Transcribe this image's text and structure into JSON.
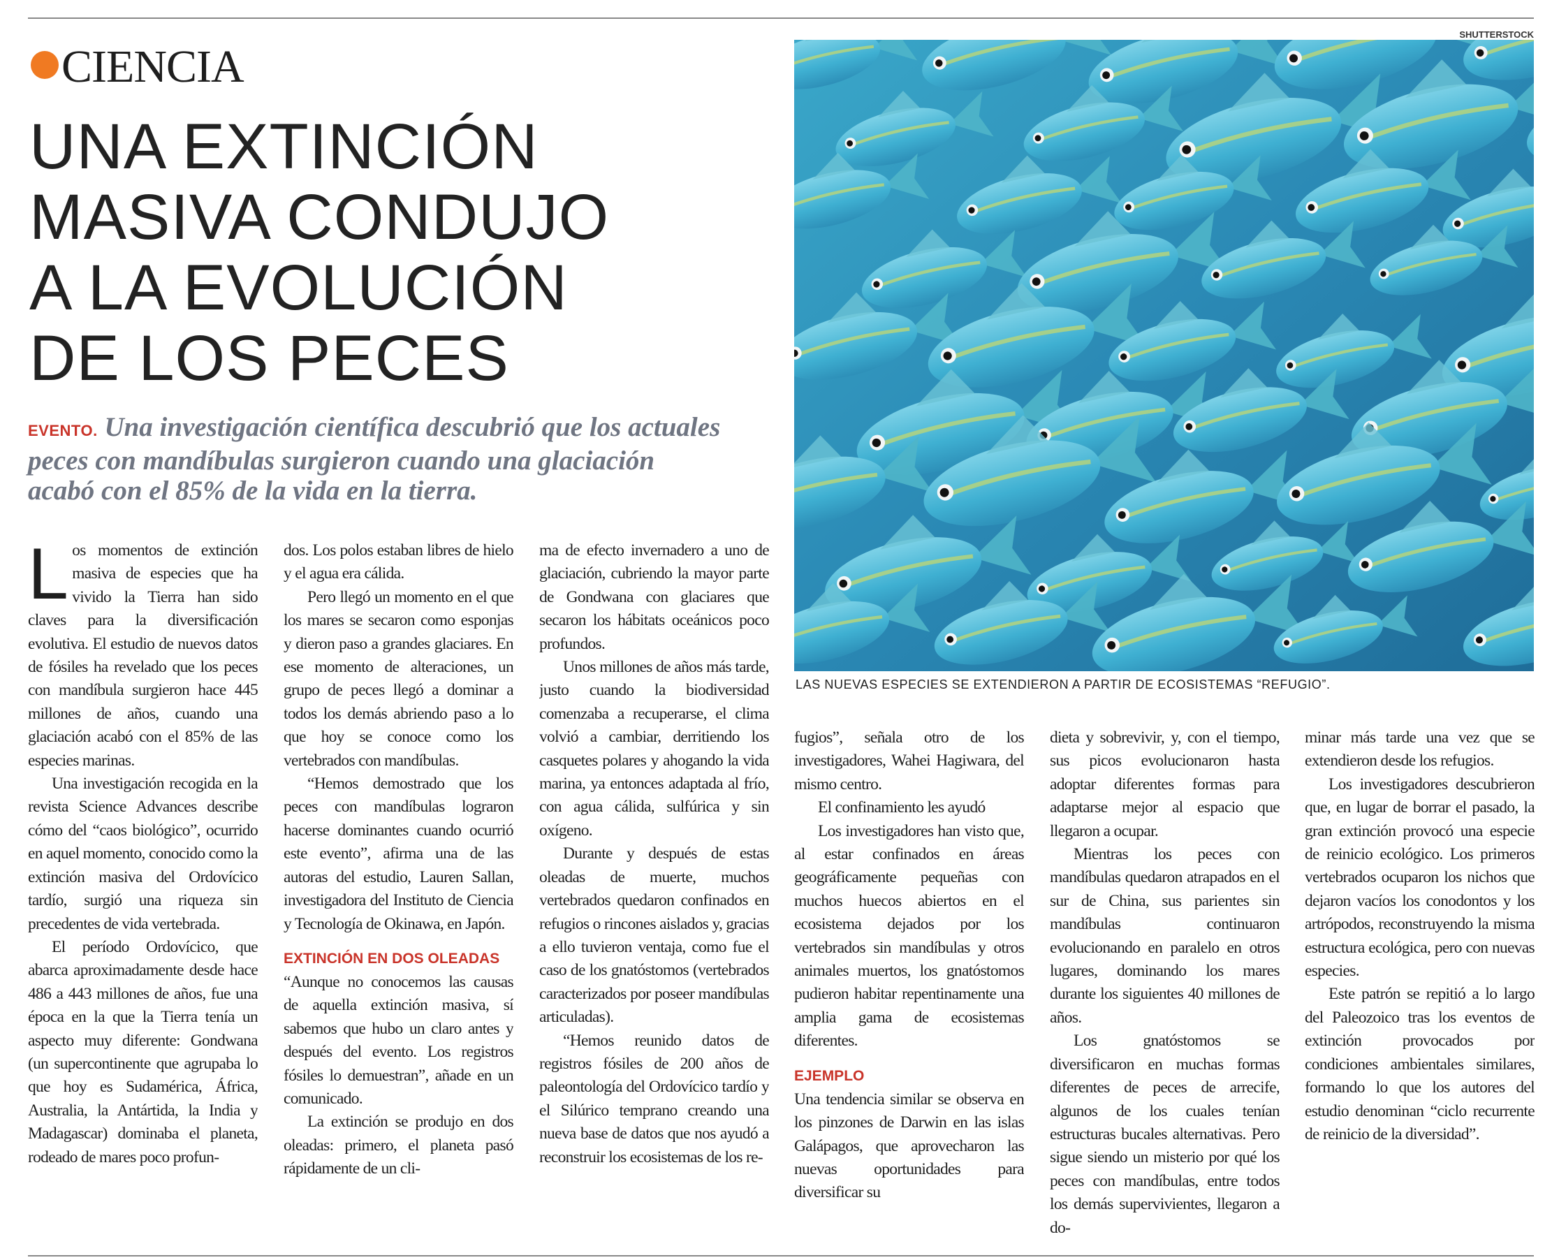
{
  "section": "CIENCIA",
  "headline": [
    "UNA EXTINCIÓN",
    "MASIVA CONDUJO",
    "A LA EVOLUCIÓN",
    "DE LOS PECES"
  ],
  "lead": {
    "label": "EVENTO.",
    "text": "Una investigación científica descubrió que los actuales peces con mandíbulas surgieron cuando una glaciación acabó con el 85% de la vida en la tierra."
  },
  "photo": {
    "credit": "SHUTTERSTOCK",
    "caption": "LAS NUEVAS ESPECIES SE EXTENDIERON A PARTIR DE ECOSISTEMAS “REFUGIO”."
  },
  "columns": [
    {
      "blocks": [
        {
          "p": "Los momentos de extinción masiva de especies que ha vivido la Tierra han sido claves para la diversificación evolutiva. El estudio de nuevos datos de fósiles ha revelado que los peces con mandíbula surgieron hace 445 millones de años, cuando una glaciación acabó con el 85% de las especies marinas."
        },
        {
          "p": "Una investigación recogida en la revista Science Advances describe cómo del “caos biológico”, ocurrido en aquel momento, conocido como la extinción masiva del Ordovícico tardío, surgió una riqueza sin precedentes de vida vertebrada."
        },
        {
          "p": "El período Ordovícico, que abarca aproximadamente desde hace 486 a 443 millones de años, fue una época en la que la Tierra tenía un aspecto muy diferente: Gondwana (un supercontinente que agrupaba lo que hoy es Sudamérica, África, Australia, la Antártida, la India y Madagascar) dominaba el planeta, rodeado de mares poco profun-"
        }
      ]
    },
    {
      "blocks": [
        {
          "p": "dos. Los polos estaban libres de hielo y el agua era cálida."
        },
        {
          "p": "Pero llegó un momento en el que los mares se secaron como esponjas y dieron paso a grandes glaciares. En ese momento de alteraciones, un grupo de peces llegó a dominar a todos los demás abriendo paso a lo que hoy se conoce como los vertebrados con mandíbulas."
        },
        {
          "p": "“Hemos demostrado que los peces con mandíbulas lograron hacerse dominantes cuando ocurrió este evento”, afirma una de las autoras del estudio, Lauren Sallan, investigadora del Instituto de Ciencia y Tecnología de Okinawa, en Japón."
        },
        {
          "subhead": "EXTINCIÓN EN DOS OLEADAS"
        },
        {
          "p": "“Aunque no conocemos las causas de aquella extinción masiva, sí sabemos que hubo un claro antes y después del evento. Los registros fósiles lo demuestran”, añade en un comunicado."
        },
        {
          "p": "La extinción se produjo en dos oleadas: primero, el planeta pasó rápidamente de un cli-"
        }
      ]
    },
    {
      "blocks": [
        {
          "p": "ma de efecto invernadero a uno de glaciación, cubriendo la mayor parte de Gondwana con glaciares que secaron los hábitats oceánicos poco profundos."
        },
        {
          "p": "Unos millones de años más tarde, justo cuando la biodiversidad comenzaba a recuperarse, el clima volvió a cambiar, derritiendo los casquetes polares y ahogando la vida marina, ya entonces adaptada al frío, con agua cálida, sulfúrica y sin oxígeno."
        },
        {
          "p": "Durante y después de estas oleadas de muerte, muchos vertebrados quedaron confinados en refugios o rincones aislados y, gracias a ello tuvieron ventaja, como fue el caso de los gnatóstomos (vertebrados caracterizados por poseer mandíbulas articuladas)."
        },
        {
          "p": "“Hemos reunido datos de registros fósiles de 200 años de paleontología del Ordovícico tardío y el Silúrico temprano creando una nueva base de datos que nos ayudó a reconstruir los ecosistemas de los re-"
        }
      ]
    },
    {
      "blocks": [
        {
          "p": "fugios”, señala otro de los investigadores, Wahei Hagiwara, del mismo centro."
        },
        {
          "p": "El confinamiento les ayudó"
        },
        {
          "p": "Los investigadores han visto que, al estar confinados en áreas geográficamente pequeñas con muchos huecos abiertos en el ecosistema dejados por los vertebrados sin mandíbulas y otros animales muertos, los gnatóstomos pudieron habitar repentinamente una amplia gama de ecosistemas diferentes."
        },
        {
          "subhead": "EJEMPLO"
        },
        {
          "p": "Una tendencia similar se observa en los pinzones de Darwin en las islas Galápagos, que aprovecharon las nuevas oportunidades para diversificar su"
        }
      ]
    },
    {
      "blocks": [
        {
          "p": "dieta y sobrevivir, y, con el tiempo, sus picos evolucionaron hasta adoptar diferentes formas para adaptarse mejor al espacio que llegaron a ocupar."
        },
        {
          "p": "Mientras los peces con mandíbulas quedaron atrapados en el sur de China, sus parientes sin mandíbulas continuaron evolucionando en paralelo en otros lugares, dominando los mares durante los siguientes 40 millones de años."
        },
        {
          "p": "Los gnatóstomos se diversificaron en muchas formas diferentes de peces de arrecife, algunos de los cuales tenían estructuras bucales alternativas. Pero sigue siendo un misterio por qué los peces con mandíbulas, entre todos los demás supervivientes, llegaron a do-"
        }
      ]
    },
    {
      "blocks": [
        {
          "p": "minar más tarde una vez que se extendieron desde los refugios."
        },
        {
          "p": "Los investigadores descubrieron que, en lugar de borrar el pasado, la gran extinción provocó una especie de reinicio ecológico. Los primeros vertebrados ocuparon los nichos que dejaron vacíos los conodontos y los artrópodos, reconstruyendo la misma estructura ecológica, pero con nuevas especies."
        },
        {
          "p": "Este patrón se repitió a lo largo del Paleozoico tras los eventos de extinción provocados por condiciones ambientales similares, formando lo que los autores del estudio denominan “ciclo recurrente de reinicio de la diversidad”."
        }
      ]
    }
  ]
}
